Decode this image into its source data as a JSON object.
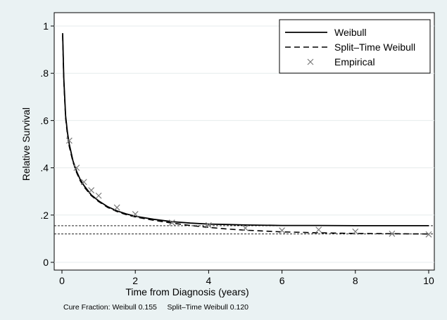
{
  "chart_data": {
    "type": "line",
    "xlabel": "Time from Diagnosis (years)",
    "ylabel": "Relative Survival",
    "xlim": [
      0,
      10
    ],
    "ylim": [
      0,
      1
    ],
    "x_ticks": [
      0,
      2,
      4,
      6,
      8,
      10
    ],
    "x_tick_labels": [
      "0",
      "2",
      "4",
      "6",
      "8",
      "10"
    ],
    "y_ticks": [
      0,
      0.2,
      0.4,
      0.6,
      0.8,
      1
    ],
    "y_tick_labels": [
      "0",
      ".2",
      ".4",
      ".6",
      ".8",
      "1"
    ],
    "grid": true,
    "legend_position": "top-right",
    "series": [
      {
        "name": "Weibull",
        "style": "solid",
        "x": [
          0.02,
          0.05,
          0.1,
          0.15,
          0.2,
          0.3,
          0.4,
          0.5,
          0.6,
          0.8,
          1,
          1.25,
          1.5,
          1.75,
          2,
          2.5,
          3,
          3.5,
          4,
          4.5,
          5,
          6,
          7,
          8,
          9,
          10
        ],
        "y": [
          0.97,
          0.78,
          0.62,
          0.55,
          0.5,
          0.43,
          0.385,
          0.35,
          0.325,
          0.285,
          0.26,
          0.235,
          0.218,
          0.205,
          0.195,
          0.182,
          0.172,
          0.166,
          0.162,
          0.16,
          0.158,
          0.156,
          0.156,
          0.155,
          0.155,
          0.155
        ]
      },
      {
        "name": "Split–Time Weibull",
        "style": "dashed",
        "x": [
          0.02,
          0.05,
          0.1,
          0.15,
          0.2,
          0.3,
          0.4,
          0.5,
          0.6,
          0.8,
          1,
          1.25,
          1.5,
          1.75,
          2,
          2.5,
          3,
          3.5,
          4,
          4.5,
          5,
          6,
          7,
          8,
          9,
          10
        ],
        "y": [
          0.96,
          0.77,
          0.61,
          0.54,
          0.49,
          0.425,
          0.38,
          0.345,
          0.32,
          0.282,
          0.257,
          0.232,
          0.215,
          0.202,
          0.192,
          0.178,
          0.166,
          0.156,
          0.148,
          0.141,
          0.136,
          0.129,
          0.125,
          0.122,
          0.121,
          0.12
        ]
      },
      {
        "name": "Empirical",
        "style": "marker-x",
        "x": [
          0.2,
          0.4,
          0.6,
          0.8,
          1,
          1.5,
          2,
          3,
          4,
          5,
          6,
          7,
          8,
          9,
          10
        ],
        "y": [
          0.515,
          0.4,
          0.34,
          0.305,
          0.282,
          0.232,
          0.204,
          0.168,
          0.157,
          0.145,
          0.135,
          0.138,
          0.13,
          0.121,
          0.118
        ]
      }
    ],
    "cure_lines": [
      {
        "name": "Weibull",
        "value": 0.155
      },
      {
        "name": "Split–Time Weibull",
        "value": 0.12
      }
    ],
    "note": "Cure Fraction: Weibull 0.155     Split–Time Weibull 0.120",
    "colors": {
      "background": "#eaf2f3",
      "plot_background": "#ffffff",
      "line": "#000000",
      "marker": "#7a7a7a",
      "grid": "#e6ebec"
    }
  }
}
